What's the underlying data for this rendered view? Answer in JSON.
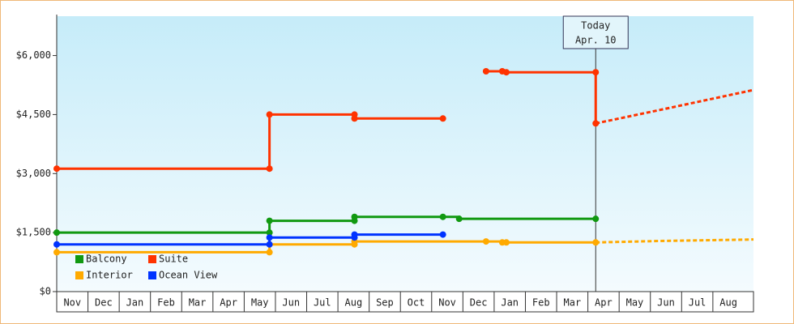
{
  "chart_data": {
    "type": "step-line",
    "categories": [
      "Nov",
      "Dec",
      "Jan",
      "Feb",
      "Mar",
      "Apr",
      "May",
      "Jun",
      "Jul",
      "Aug",
      "Sep",
      "Oct",
      "Nov",
      "Dec",
      "Jan",
      "Feb",
      "Mar",
      "Apr",
      "May",
      "Jun",
      "Jul",
      "Aug"
    ],
    "xlim": [
      0,
      22.3
    ],
    "ylim": [
      0,
      7000
    ],
    "yticks": [
      {
        "value": 0,
        "label": "$0"
      },
      {
        "value": 1500,
        "label": "$1,500"
      },
      {
        "value": 3000,
        "label": "$3,000"
      },
      {
        "value": 4500,
        "label": "$4,500"
      },
      {
        "value": 6000,
        "label": "$6,000"
      }
    ],
    "legend": "lower-left",
    "series": [
      {
        "name": "Balcony",
        "color": "#119911",
        "x": [
          0,
          6.81,
          6.81,
          9.53,
          9.53,
          12.36,
          12.88,
          17.25
        ],
        "values": [
          1500,
          1500,
          1800,
          1800,
          1900,
          1900,
          1850,
          1850
        ]
      },
      {
        "name": "Suite",
        "color": "#ff3300",
        "x": [
          0,
          6.81,
          6.81,
          9.53,
          9.53,
          12.36,
          null,
          13.74,
          14.26,
          14.39,
          17.25,
          17.25
        ],
        "values": [
          3125,
          3125,
          4500,
          4500,
          4400,
          4400,
          null,
          5600,
          5600,
          5575,
          5575,
          4275
        ],
        "forecast": {
          "x": [
            17.25,
            19.5,
            22.3
          ],
          "values": [
            4275,
            4650,
            5125
          ]
        }
      },
      {
        "name": "Interior",
        "color": "#ffaa00",
        "x": [
          0,
          6.81,
          6.81,
          9.53,
          9.53,
          13.74,
          14.26,
          14.39,
          17.25
        ],
        "values": [
          1000,
          1000,
          1200,
          1200,
          1275,
          1275,
          1250,
          1250,
          1250
        ],
        "forecast": {
          "x": [
            17.25,
            19.5,
            22.3
          ],
          "values": [
            1250,
            1290,
            1325
          ]
        }
      },
      {
        "name": "Ocean View",
        "color": "#0033ff",
        "x": [
          0,
          6.81,
          6.81,
          9.53,
          9.53,
          12.36
        ],
        "values": [
          1200,
          1200,
          1375,
          1375,
          1450,
          1450
        ]
      }
    ],
    "annotations": [
      {
        "x": 17.25,
        "lines": [
          "Today",
          "Apr. 10"
        ]
      }
    ]
  }
}
